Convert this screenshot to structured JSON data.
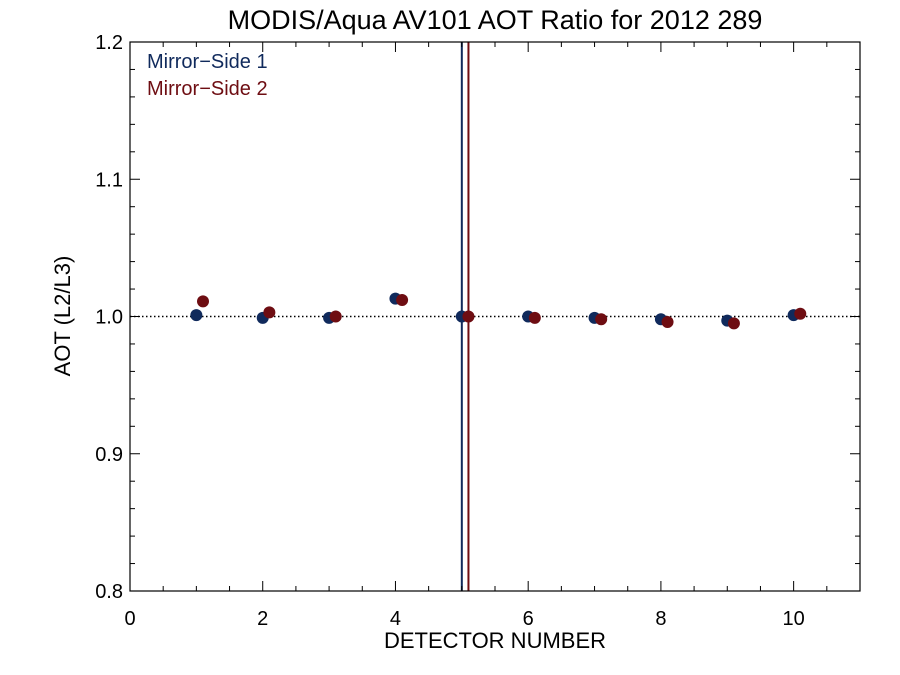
{
  "colors": {
    "mirror_side_1": "#102a5c",
    "mirror_side_2": "#6e0d12",
    "axis": "#000000"
  },
  "chart_data": {
    "type": "scatter",
    "title": "MODIS/Aqua AV101 AOT Ratio for 2012 289",
    "xlabel": "DETECTOR NUMBER",
    "ylabel": "AOT (L2/L3)",
    "xlim": [
      0,
      11
    ],
    "ylim": [
      0.8,
      1.2
    ],
    "x_ticks": [
      0,
      2,
      4,
      6,
      8,
      10
    ],
    "y_ticks": [
      0.8,
      0.9,
      1.0,
      1.1,
      1.2
    ],
    "x_tick_labels": [
      "0",
      "2",
      "4",
      "6",
      "8",
      "10"
    ],
    "y_tick_labels": [
      "0.8",
      "0.9",
      "1.0",
      "1.1",
      "1.2"
    ],
    "reference_line": {
      "y": 1.0,
      "style": "dotted"
    },
    "vertical_lines": [
      {
        "x": 5.0,
        "series": "Mirror−Side 1"
      },
      {
        "x": 5.1,
        "series": "Mirror−Side 2"
      }
    ],
    "legend_position": "top-left",
    "grid": false,
    "series": [
      {
        "name": "Mirror−Side 1",
        "color": "#102a5c",
        "x": [
          1,
          2,
          3,
          4,
          5,
          6,
          7,
          8,
          9,
          10
        ],
        "y": [
          1.001,
          0.999,
          0.999,
          1.013,
          1.0,
          1.0,
          0.999,
          0.998,
          0.997,
          1.001
        ]
      },
      {
        "name": "Mirror−Side 2",
        "color": "#6e0d12",
        "x": [
          1.1,
          2.1,
          3.1,
          4.1,
          5.1,
          6.1,
          7.1,
          8.1,
          9.1,
          10.1
        ],
        "y": [
          1.011,
          1.003,
          1.0,
          1.012,
          1.0,
          0.999,
          0.998,
          0.996,
          0.995,
          1.002
        ]
      }
    ]
  }
}
